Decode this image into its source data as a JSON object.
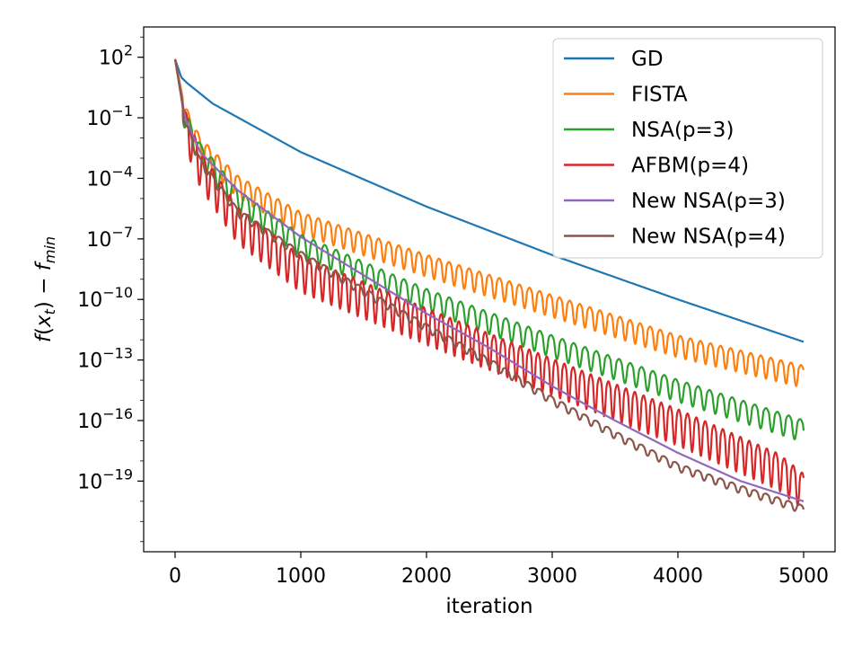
{
  "chart_data": {
    "type": "line",
    "xlabel": "iteration",
    "ylabel": "f(x_t) − f_min",
    "yscale": "log",
    "xlim": [
      -250,
      5250
    ],
    "ylim_exponent": [
      -22.5,
      3.5
    ],
    "x_ticks": [
      0,
      1000,
      2000,
      3000,
      4000,
      5000
    ],
    "x_tick_labels": [
      "0",
      "1000",
      "2000",
      "3000",
      "4000",
      "5000"
    ],
    "y_ticks_exponent": [
      2,
      -1,
      -4,
      -7,
      -10,
      -13,
      -16,
      -19
    ],
    "y_tick_labels": [
      "10^2",
      "10^−1",
      "10^−4",
      "10^−7",
      "10^−10",
      "10^−13",
      "10^−16",
      "10^−19"
    ],
    "grid": false,
    "legend_position": "top-right",
    "series": [
      {
        "name": "GD",
        "color": "#1f77b4",
        "oscillation_amplitude": 0,
        "log10_points": [
          [
            0,
            1.9
          ],
          [
            50,
            1.0
          ],
          [
            100,
            0.7
          ],
          [
            300,
            -0.3
          ],
          [
            1000,
            -2.7
          ],
          [
            2000,
            -5.4
          ],
          [
            3000,
            -7.8
          ],
          [
            4000,
            -10.0
          ],
          [
            5000,
            -12.1
          ]
        ]
      },
      {
        "name": "FISTA",
        "color": "#ff7f0e",
        "oscillation_amplitude": 0.55,
        "log10_points": [
          [
            0,
            1.9
          ],
          [
            80,
            -0.6
          ],
          [
            200,
            -2.2
          ],
          [
            500,
            -4.1
          ],
          [
            1000,
            -5.9
          ],
          [
            2000,
            -8.0
          ],
          [
            3000,
            -10.0
          ],
          [
            4000,
            -12.0
          ],
          [
            5000,
            -13.5
          ]
        ]
      },
      {
        "name": "NSA(p=3)",
        "color": "#2ca02c",
        "oscillation_amplitude": 0.55,
        "log10_points": [
          [
            0,
            1.9
          ],
          [
            80,
            -0.9
          ],
          [
            200,
            -2.5
          ],
          [
            500,
            -4.8
          ],
          [
            1000,
            -7.0
          ],
          [
            2000,
            -9.7
          ],
          [
            3000,
            -12.0
          ],
          [
            4000,
            -14.2
          ],
          [
            5000,
            -16.2
          ]
        ]
      },
      {
        "name": "AFBM(p=4)",
        "color": "#d62728",
        "oscillation_amplitude": 0.7,
        "log10_points": [
          [
            0,
            1.9
          ],
          [
            80,
            -1.0
          ],
          [
            200,
            -3.0
          ],
          [
            500,
            -5.8
          ],
          [
            1000,
            -8.2
          ],
          [
            2000,
            -10.8
          ],
          [
            3000,
            -13.3
          ],
          [
            4000,
            -15.8
          ],
          [
            4800,
            -18.0
          ],
          [
            5000,
            -19.0
          ]
        ]
      },
      {
        "name": "New NSA(p=3)",
        "color": "#9467bd",
        "oscillation_amplitude": 0,
        "log10_points": [
          [
            0,
            1.9
          ],
          [
            80,
            -1.0
          ],
          [
            200,
            -2.7
          ],
          [
            500,
            -4.6
          ],
          [
            1000,
            -6.9
          ],
          [
            1500,
            -8.8
          ],
          [
            2000,
            -10.7
          ],
          [
            2500,
            -12.4
          ],
          [
            3000,
            -14.3
          ],
          [
            3500,
            -16.0
          ],
          [
            4000,
            -17.6
          ],
          [
            4500,
            -19.0
          ],
          [
            5000,
            -20.0
          ]
        ]
      },
      {
        "name": "New NSA(p=4)",
        "color": "#8c564b",
        "oscillation_amplitude": 0.2,
        "log10_points": [
          [
            0,
            1.9
          ],
          [
            80,
            -1.2
          ],
          [
            200,
            -3.1
          ],
          [
            500,
            -5.6
          ],
          [
            1000,
            -7.7
          ],
          [
            1500,
            -9.5
          ],
          [
            2000,
            -11.3
          ],
          [
            2500,
            -13.0
          ],
          [
            3000,
            -14.9
          ],
          [
            3500,
            -16.6
          ],
          [
            4000,
            -18.2
          ],
          [
            4500,
            -19.3
          ],
          [
            5000,
            -20.3
          ]
        ]
      }
    ]
  }
}
